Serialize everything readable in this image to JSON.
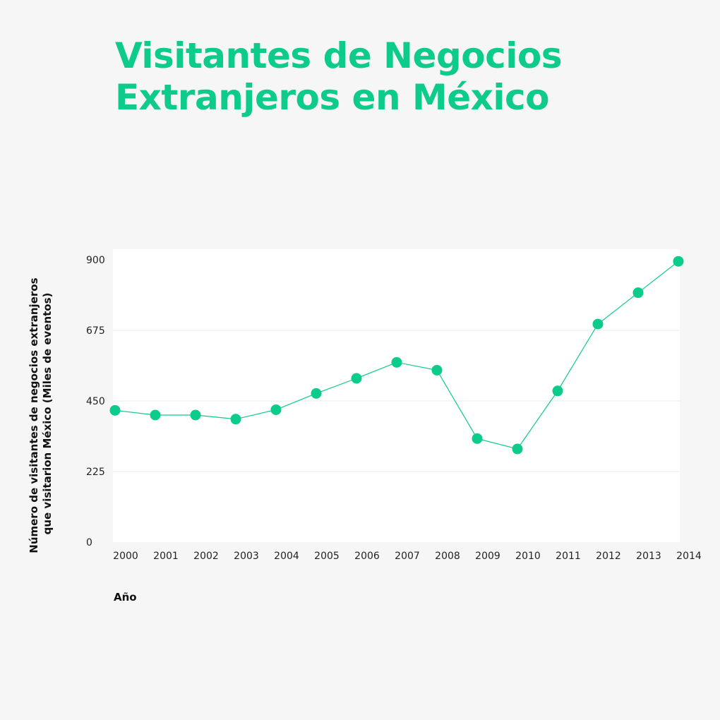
{
  "title": {
    "line1": "Visitantes de Negocios",
    "line2": "Extranjeros en México"
  },
  "colors": {
    "accent": "#0dcb8b",
    "background": "#f6f6f6",
    "plot_background": "#ffffff",
    "grid": "#e8e8e8"
  },
  "chart_data": {
    "type": "line",
    "title": "Visitantes de Negocios Extranjeros en México",
    "xlabel": "Año",
    "ylabel_lines": [
      "Número de visitantes de negocios extranjeros",
      "que visitarion México (Miles de eventos)"
    ],
    "ylabel": "Número de visitantes de negocios extranjeros que visitarion México (Miles de eventos)",
    "categories": [
      "2000",
      "2001",
      "2002",
      "2003",
      "2004",
      "2005",
      "2006",
      "2007",
      "2008",
      "2009",
      "2010",
      "2011",
      "2012",
      "2013",
      "2014"
    ],
    "series": [
      {
        "values": [
          420,
          405,
          405,
          392,
          422,
          474,
          522,
          573,
          548,
          330,
          297,
          482,
          695,
          795,
          895
        ]
      }
    ],
    "yticks": [
      0,
      225,
      450,
      675,
      900
    ],
    "ylim": [
      0,
      915
    ],
    "grid": true,
    "markers": true
  }
}
